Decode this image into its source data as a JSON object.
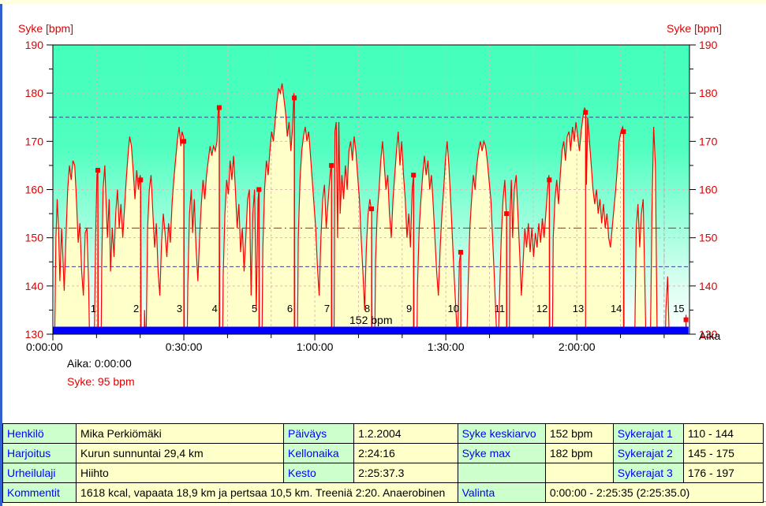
{
  "window": {
    "colors": {
      "left_border": "#3060CF",
      "top_strip": "#FFFFE1",
      "label_cell_bg": "#CCFFCC",
      "value_cell_bg": "#FFFFC9",
      "label_text": "#0000FF"
    }
  },
  "chart_data": {
    "type": "line",
    "title": "",
    "ylabel_left": "Syke [bpm]",
    "ylabel_right": "Syke [bpm]",
    "xlabel": "Aika",
    "ylim": [
      130,
      190
    ],
    "x_max_minutes": 145.8,
    "grid": "on",
    "y_ticks": [
      130,
      140,
      150,
      160,
      170,
      180,
      190
    ],
    "y_minor_step": 5,
    "x_ticks": [
      {
        "min": 0,
        "label": "0:00:00"
      },
      {
        "min": 30,
        "label": "0:30:00"
      },
      {
        "min": 60,
        "label": "1:00:00"
      },
      {
        "min": 90,
        "label": "1:30:00"
      },
      {
        "min": 120,
        "label": "2:00:00"
      }
    ],
    "x_minor_step_min": 10,
    "avg_line_bpm": 152,
    "avg_label": "152 bpm",
    "hr_limit_lines_bpm": [
      144,
      175
    ],
    "training_end_line_min": 140,
    "selection_bar": {
      "start_min": 0,
      "end_min": 145.583
    },
    "cursor_readout": {
      "time_text": "Aika: 0:00:00",
      "hr_text": "Syke: 95 bpm"
    },
    "colors": {
      "curve": "#FF0000",
      "fill_under_curve": "#FFFFC9",
      "bg_gradient_top": "#44FFBC",
      "bg_gradient_bottom": "#FFFFFF",
      "grid_pink": "#EFAFC5",
      "limit_line_navy": "#3B3B9E",
      "avg_line_red": "#FF0000",
      "selection_bar_blue": "#0000FF",
      "training_end_gray": "#B0B0B0",
      "axis_label_red": "#E00000"
    },
    "laps": [
      {
        "n": 1,
        "min": 10.3,
        "bpm": 164
      },
      {
        "n": 2,
        "min": 20.1,
        "bpm": 162
      },
      {
        "n": 3,
        "min": 30.0,
        "bpm": 170
      },
      {
        "n": 4,
        "min": 38.1,
        "bpm": 177
      },
      {
        "n": 5,
        "min": 47.2,
        "bpm": 160
      },
      {
        "n": 6,
        "min": 55.3,
        "bpm": 179
      },
      {
        "n": 7,
        "min": 63.8,
        "bpm": 165
      },
      {
        "n": 8,
        "min": 73.0,
        "bpm": 156
      },
      {
        "n": 9,
        "min": 82.6,
        "bpm": 163
      },
      {
        "n": 10,
        "min": 93.4,
        "bpm": 147
      },
      {
        "n": 11,
        "min": 103.9,
        "bpm": 155
      },
      {
        "n": 12,
        "min": 113.7,
        "bpm": 162
      },
      {
        "n": 13,
        "min": 122.0,
        "bpm": 176
      },
      {
        "n": 14,
        "min": 130.7,
        "bpm": 172
      },
      {
        "n": 15,
        "min": 145.0,
        "bpm": 133
      }
    ],
    "series": [
      {
        "name": "Syke",
        "points_min_bpm": [
          0,
          95,
          0.4,
          128,
          0.7,
          150,
          1,
          158,
          1.3,
          152,
          1.6,
          141,
          2,
          152,
          2.3,
          146,
          2.6,
          139,
          3,
          150,
          3.4,
          160,
          3.8,
          165,
          4.2,
          162,
          4.6,
          166,
          5,
          165,
          5.4,
          158,
          5.8,
          149,
          6.2,
          153,
          6.6,
          143,
          7,
          138,
          7.4,
          151,
          7.8,
          152,
          8.2,
          140,
          8.6,
          118,
          9,
          112,
          9.4,
          122,
          9.8,
          150,
          10.1,
          163,
          10.3,
          164,
          10.5,
          98,
          10.8,
          102,
          11.2,
          145,
          11.5,
          160,
          11.9,
          165,
          12.2,
          157,
          12.5,
          150,
          12.9,
          158,
          13.2,
          143,
          13.6,
          152,
          14,
          146,
          14.4,
          155,
          14.8,
          160,
          15.2,
          152,
          15.6,
          157,
          16,
          150,
          16.4,
          156,
          16.8,
          162,
          17.2,
          167,
          17.6,
          171,
          18,
          169,
          18.4,
          164,
          18.8,
          158,
          19.2,
          164,
          19.6,
          160,
          20,
          163,
          20.1,
          162,
          20.3,
          100,
          20.6,
          105,
          21,
          135,
          21.3,
          125,
          21.7,
          152,
          22.1,
          160,
          22.5,
          163,
          22.9,
          155,
          23.3,
          148,
          23.7,
          153,
          24.1,
          143,
          24.5,
          138,
          24.9,
          149,
          25.3,
          155,
          25.7,
          151,
          26.1,
          146,
          26.5,
          153,
          26.9,
          149,
          27.3,
          157,
          27.7,
          162,
          28.1,
          166,
          28.5,
          170,
          28.9,
          173,
          29.3,
          169,
          29.6,
          172,
          29.9,
          171,
          30,
          170,
          30.2,
          100,
          30.5,
          104,
          30.9,
          140,
          31.3,
          155,
          31.7,
          160,
          32,
          151,
          32.4,
          158,
          32.8,
          148,
          33.2,
          141,
          33.6,
          150,
          34,
          157,
          34.4,
          162,
          34.8,
          158,
          35.2,
          163,
          35.6,
          166,
          36,
          169,
          36.4,
          167,
          36.8,
          169,
          37.2,
          168,
          37.6,
          170,
          37.9,
          177,
          38.1,
          177,
          38.3,
          100,
          38.6,
          103,
          39,
          142,
          39.4,
          155,
          39.8,
          162,
          40.2,
          159,
          40.6,
          166,
          41,
          162,
          41.4,
          167,
          41.8,
          160,
          42.2,
          152,
          42.6,
          157,
          43,
          147,
          43.4,
          152,
          43.8,
          143,
          44.2,
          150,
          44.6,
          158,
          45,
          160,
          45.4,
          138,
          45.8,
          155,
          46.2,
          160,
          46.6,
          135,
          47,
          158,
          47.2,
          160,
          47.4,
          100,
          47.7,
          110,
          48.1,
          148,
          48.5,
          160,
          48.9,
          166,
          49.3,
          163,
          49.7,
          168,
          50.1,
          172,
          50.5,
          170,
          50.9,
          174,
          51.3,
          178,
          51.7,
          181,
          52.1,
          180,
          52.5,
          182,
          52.9,
          179,
          53.3,
          176,
          53.7,
          171,
          54.1,
          174,
          54.5,
          168,
          54.9,
          173,
          55.2,
          180,
          55.3,
          179,
          55.5,
          100,
          55.8,
          105,
          56.2,
          150,
          56.6,
          162,
          57,
          168,
          57.4,
          171,
          57.8,
          173,
          58.2,
          170,
          58.6,
          172,
          59,
          167,
          59.4,
          162,
          59.8,
          157,
          60.2,
          152,
          60.6,
          144,
          61,
          138,
          61.4,
          150,
          61.8,
          158,
          62.2,
          161,
          62.6,
          152,
          63,
          157,
          63.4,
          162,
          63.7,
          165,
          63.8,
          165,
          64,
          100,
          64.3,
          110,
          64.6,
          172,
          64.9,
          174,
          65.2,
          150,
          65.5,
          174,
          65.8,
          155,
          66.2,
          163,
          66.6,
          158,
          67,
          165,
          67.4,
          160,
          67.8,
          168,
          68.2,
          170,
          68.6,
          166,
          69,
          171,
          69.4,
          168,
          69.8,
          163,
          70.2,
          158,
          70.6,
          150,
          71,
          143,
          71.4,
          135,
          71.8,
          148,
          72.2,
          155,
          72.6,
          158,
          72.9,
          156,
          73,
          156,
          73.2,
          100,
          73.5,
          108,
          73.9,
          145,
          74.3,
          155,
          74.7,
          160,
          75.1,
          166,
          75.5,
          170,
          75.9,
          165,
          76.3,
          160,
          76.7,
          163,
          77.1,
          155,
          77.5,
          150,
          77.9,
          158,
          78.3,
          163,
          78.7,
          168,
          79.1,
          172,
          79.5,
          165,
          79.9,
          170,
          80.3,
          163,
          80.7,
          158,
          81.1,
          150,
          81.5,
          155,
          81.9,
          148,
          82.3,
          160,
          82.6,
          163,
          82.8,
          100,
          83.1,
          105,
          83.5,
          140,
          83.9,
          152,
          84.3,
          158,
          84.7,
          163,
          85.1,
          167,
          85.5,
          163,
          85.9,
          166,
          86.3,
          160,
          86.7,
          163,
          87.1,
          157,
          87.5,
          150,
          87.9,
          143,
          88.3,
          138,
          88.7,
          148,
          89.1,
          155,
          89.5,
          160,
          89.9,
          166,
          90.3,
          170,
          90.7,
          165,
          91.1,
          158,
          91.5,
          150,
          91.9,
          142,
          92.3,
          135,
          92.7,
          128,
          93.1,
          145,
          93.4,
          147,
          93.6,
          98,
          93.9,
          104,
          94.3,
          130,
          94.7,
          125,
          95.1,
          140,
          95.5,
          152,
          95.9,
          158,
          96.3,
          163,
          96.7,
          160,
          97.1,
          165,
          97.5,
          168,
          97.9,
          170,
          98.3,
          168,
          98.7,
          170,
          99.1,
          169,
          99.5,
          166,
          99.9,
          162,
          100.3,
          158,
          100.7,
          150,
          101.1,
          142,
          101.5,
          133,
          101.9,
          125,
          102.3,
          138,
          102.7,
          150,
          103.1,
          158,
          103.5,
          162,
          103.8,
          156,
          103.9,
          155,
          104.1,
          100,
          104.4,
          108,
          104.7,
          155,
          105,
          162,
          105.3,
          150,
          105.7,
          160,
          106.1,
          163,
          106.5,
          155,
          106.9,
          147,
          107.3,
          138,
          107.7,
          145,
          108.1,
          152,
          108.5,
          148,
          108.9,
          153,
          109.3,
          147,
          109.7,
          152,
          110.1,
          146,
          110.5,
          151,
          110.9,
          148,
          111.3,
          153,
          111.7,
          149,
          112.1,
          154,
          112.5,
          150,
          112.9,
          155,
          113.3,
          160,
          113.6,
          163,
          113.7,
          162,
          113.9,
          100,
          114.2,
          108,
          114.6,
          150,
          115,
          158,
          115.4,
          162,
          115.8,
          157,
          116.2,
          163,
          116.6,
          168,
          117,
          170,
          117.4,
          166,
          117.8,
          171,
          118.2,
          172,
          118.6,
          168,
          119,
          173,
          119.4,
          170,
          119.8,
          174,
          120.2,
          171,
          120.6,
          168,
          121,
          172,
          121.4,
          175,
          121.8,
          177,
          122,
          176,
          122.2,
          161,
          122.5,
          175,
          122.9,
          170,
          123.3,
          165,
          123.7,
          160,
          124.1,
          157,
          124.5,
          160,
          124.9,
          155,
          125.3,
          158,
          125.7,
          153,
          126.1,
          157,
          126.5,
          152,
          126.9,
          155,
          127.3,
          150,
          127.7,
          148,
          128.1,
          152,
          128.5,
          156,
          128.9,
          160,
          129.3,
          165,
          129.7,
          170,
          130.1,
          172,
          130.5,
          173,
          130.7,
          172,
          130.9,
          95,
          131.2,
          100,
          131.6,
          96,
          132,
          99,
          132.4,
          102,
          132.8,
          110,
          133.2,
          125,
          133.6,
          152,
          134,
          157,
          134.4,
          148,
          134.8,
          155,
          135.2,
          158,
          135.6,
          140,
          136,
          120,
          136.4,
          105,
          136.8,
          125,
          137.2,
          155,
          137.6,
          173,
          138,
          165,
          138.4,
          130,
          138.8,
          110,
          139.2,
          100,
          139.6,
          105,
          140,
          115,
          140.4,
          135,
          140.8,
          142,
          141.2,
          128,
          141.6,
          110,
          142,
          100,
          142.4,
          96,
          142.8,
          98,
          143.2,
          100,
          143.6,
          97,
          144,
          99,
          144.4,
          102,
          144.8,
          108,
          145,
          134,
          145.3,
          110,
          145.6,
          95
        ]
      }
    ]
  },
  "table": {
    "rows": [
      [
        {
          "text": "Henkilö",
          "kind": "label"
        },
        {
          "text": "Mika Perkiömäki",
          "kind": "value"
        },
        {
          "text": "Päiväys",
          "kind": "label"
        },
        {
          "text": "1.2.2004",
          "kind": "value"
        },
        {
          "text": "Syke keskiarvo",
          "kind": "label"
        },
        {
          "text": "152 bpm",
          "kind": "value"
        },
        {
          "text": "Sykerajat 1",
          "kind": "label"
        },
        {
          "text": "110 - 144",
          "kind": "value"
        }
      ],
      [
        {
          "text": "Harjoitus",
          "kind": "label"
        },
        {
          "text": "Kurun sunnuntai 29,4 km",
          "kind": "value"
        },
        {
          "text": "Kellonaika",
          "kind": "label"
        },
        {
          "text": "2:24:16",
          "kind": "value"
        },
        {
          "text": "Syke max",
          "kind": "label"
        },
        {
          "text": "182 bpm",
          "kind": "value"
        },
        {
          "text": "Sykerajat 2",
          "kind": "label"
        },
        {
          "text": "145 - 175",
          "kind": "value"
        }
      ],
      [
        {
          "text": "Urheilulaji",
          "kind": "label"
        },
        {
          "text": "Hiihto",
          "kind": "value"
        },
        {
          "text": "Kesto",
          "kind": "label"
        },
        {
          "text": "2:25:37.3",
          "kind": "value"
        },
        {
          "text": "",
          "kind": "label"
        },
        {
          "text": "",
          "kind": "value"
        },
        {
          "text": "Sykerajat 3",
          "kind": "label"
        },
        {
          "text": "176 - 197",
          "kind": "value"
        }
      ],
      [
        {
          "text": "Kommentit",
          "kind": "label"
        },
        {
          "text": "1618 kcal, vapaata 18,9 km ja pertsaa 10,5 km. Treeniä 2:20. Anaerobinen",
          "kind": "value",
          "span": 3
        },
        {
          "text": "Valinta",
          "kind": "label"
        },
        {
          "text": "0:00:00 - 2:25:35 (2:25:35.0)",
          "kind": "value",
          "span": 3
        }
      ]
    ]
  }
}
